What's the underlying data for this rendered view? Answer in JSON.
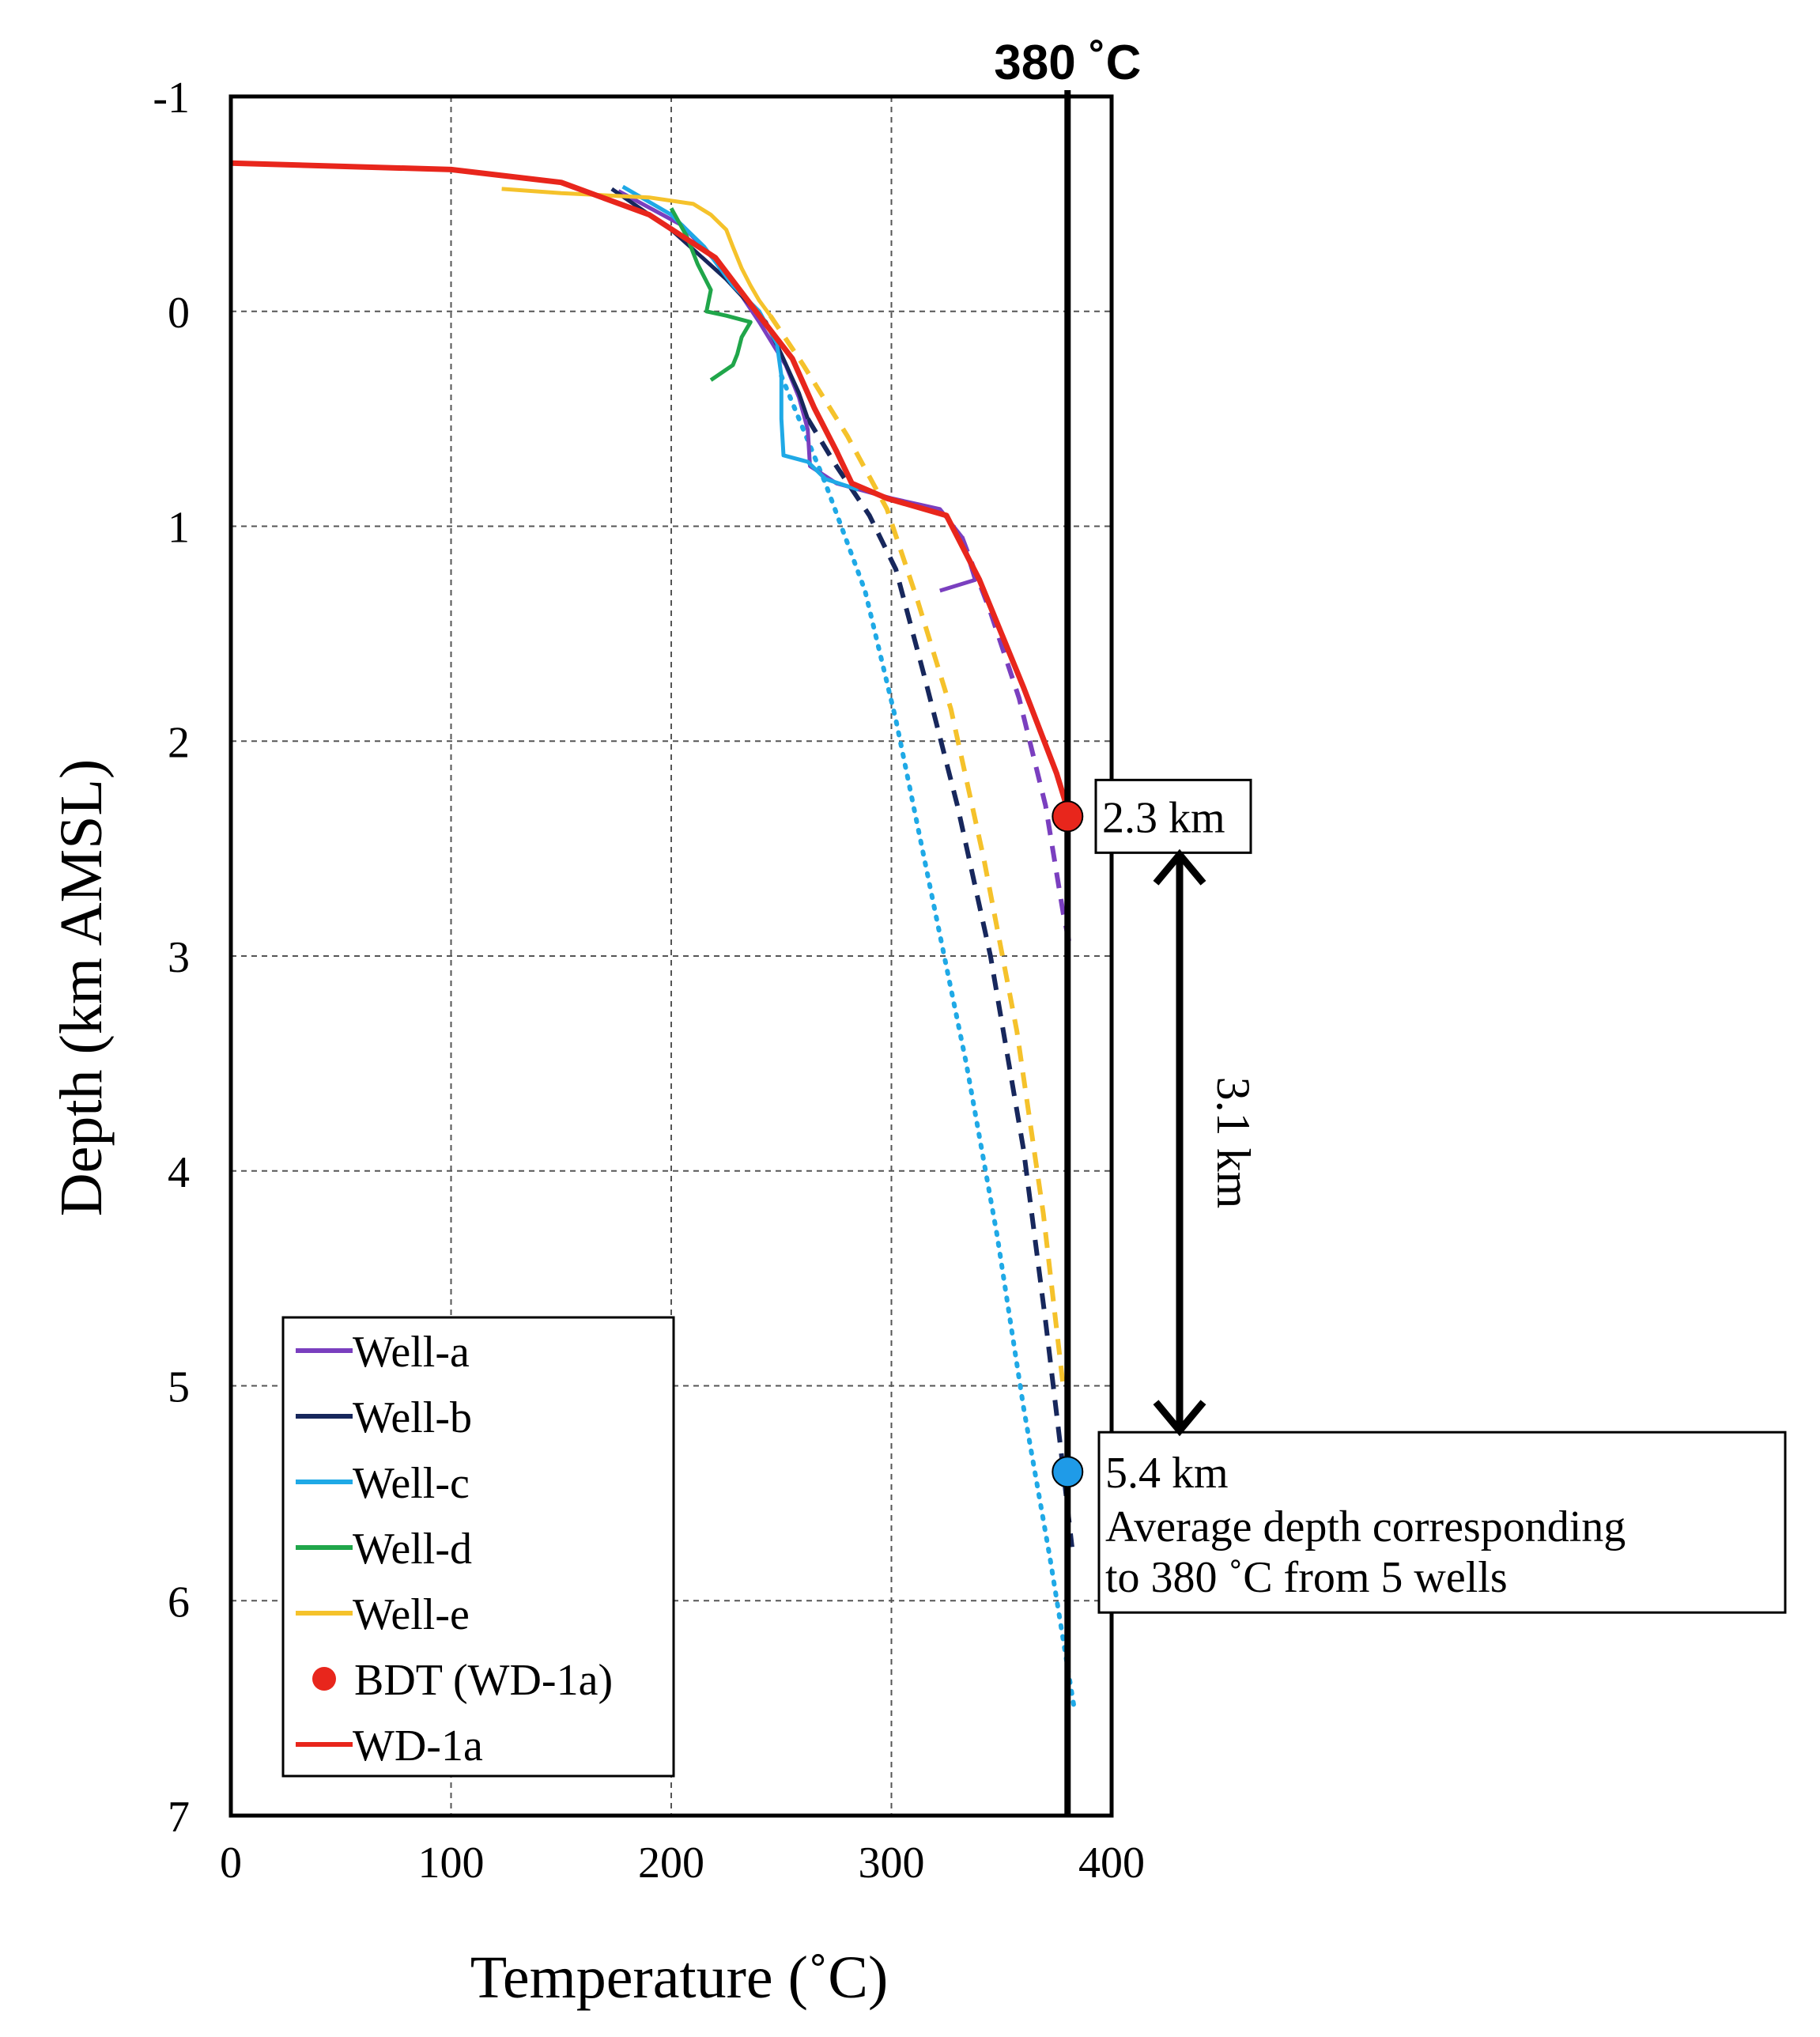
{
  "chart_data": {
    "type": "line",
    "orientation": "depth-temperature profile (y axis inverted)",
    "xlabel": "Temperature (˚C)",
    "ylabel": "Depth (km AMSL)",
    "xlim": [
      0,
      400
    ],
    "ylim": [
      -1,
      7
    ],
    "x_ticks": [
      0,
      100,
      200,
      300,
      400
    ],
    "y_ticks": [
      -1,
      0,
      1,
      2,
      3,
      4,
      5,
      6,
      7
    ],
    "grid": true,
    "legend_position": "bottom-left",
    "colors": {
      "well_a": "#7a3fbf",
      "well_b": "#17275c",
      "well_c": "#1fa9e6",
      "well_d": "#20a64a",
      "well_e": "#f5c22b",
      "bdt": "#e8261c",
      "wd1a": "#e8261c",
      "avg": "#1f9be8",
      "reference": "#000000"
    },
    "reference_line": {
      "temperature": 380,
      "label": "380 ˚C"
    },
    "series": [
      {
        "name": "Well-a",
        "measured": [
          [
            176,
            -0.56
          ],
          [
            205,
            -0.4
          ],
          [
            225,
            -0.18
          ],
          [
            240,
            0.05
          ],
          [
            252,
            0.25
          ],
          [
            258,
            0.4
          ],
          [
            262,
            0.55
          ],
          [
            263,
            0.72
          ],
          [
            275,
            0.8
          ],
          [
            300,
            0.87
          ],
          [
            322,
            0.92
          ],
          [
            332,
            1.05
          ],
          [
            338,
            1.25
          ],
          [
            322,
            1.3
          ]
        ],
        "extrapolated": [
          [
            332,
            1.05
          ],
          [
            345,
            1.4
          ],
          [
            358,
            1.8
          ],
          [
            370,
            2.3
          ],
          [
            378,
            2.8
          ],
          [
            381,
            2.95
          ]
        ],
        "extrapolated_style": "dashed"
      },
      {
        "name": "Well-b",
        "measured": [
          [
            173,
            -0.57
          ],
          [
            200,
            -0.38
          ],
          [
            225,
            -0.15
          ],
          [
            243,
            0.05
          ],
          [
            250,
            0.2
          ],
          [
            258,
            0.38
          ],
          [
            262,
            0.5
          ]
        ],
        "extrapolated": [
          [
            262,
            0.5
          ],
          [
            275,
            0.72
          ],
          [
            290,
            0.95
          ],
          [
            302,
            1.2
          ],
          [
            315,
            1.7
          ],
          [
            330,
            2.3
          ],
          [
            345,
            3.0
          ],
          [
            360,
            3.9
          ],
          [
            370,
            4.7
          ],
          [
            377,
            5.3
          ],
          [
            382,
            5.75
          ]
        ],
        "extrapolated_style": "dashed"
      },
      {
        "name": "Well-c",
        "measured": [
          [
            178,
            -0.58
          ],
          [
            200,
            -0.45
          ],
          [
            215,
            -0.3
          ],
          [
            228,
            -0.12
          ],
          [
            240,
            0.0
          ],
          [
            248,
            0.15
          ],
          [
            250,
            0.3
          ],
          [
            250,
            0.5
          ],
          [
            251,
            0.67
          ],
          [
            262,
            0.7
          ],
          [
            270,
            0.78
          ],
          [
            285,
            0.83
          ]
        ],
        "extrapolated": [
          [
            250,
            0.3
          ],
          [
            270,
            0.8
          ],
          [
            288,
            1.3
          ],
          [
            302,
            1.9
          ],
          [
            318,
            2.7
          ],
          [
            334,
            3.5
          ],
          [
            348,
            4.3
          ],
          [
            360,
            5.1
          ],
          [
            372,
            5.8
          ],
          [
            383,
            6.5
          ]
        ],
        "extrapolated_style": "dotted"
      },
      {
        "name": "Well-d",
        "measured": [
          [
            200,
            -0.48
          ],
          [
            207,
            -0.35
          ],
          [
            212,
            -0.22
          ],
          [
            218,
            -0.1
          ],
          [
            216,
            0.0
          ],
          [
            225,
            0.02
          ],
          [
            236,
            0.05
          ],
          [
            232,
            0.12
          ],
          [
            230,
            0.2
          ],
          [
            228,
            0.25
          ],
          [
            218,
            0.32
          ]
        ],
        "extrapolated": [],
        "extrapolated_style": "none"
      },
      {
        "name": "Well-e",
        "measured": [
          [
            123,
            -0.57
          ],
          [
            150,
            -0.55
          ],
          [
            190,
            -0.53
          ],
          [
            210,
            -0.5
          ],
          [
            218,
            -0.45
          ],
          [
            225,
            -0.38
          ],
          [
            228,
            -0.3
          ],
          [
            232,
            -0.2
          ],
          [
            236,
            -0.12
          ],
          [
            240,
            -0.05
          ],
          [
            245,
            0.02
          ]
        ],
        "extrapolated": [
          [
            245,
            0.02
          ],
          [
            260,
            0.25
          ],
          [
            280,
            0.58
          ],
          [
            298,
            0.92
          ],
          [
            312,
            1.35
          ],
          [
            327,
            1.85
          ],
          [
            342,
            2.55
          ],
          [
            357,
            3.35
          ],
          [
            369,
            4.2
          ],
          [
            378,
            5.0
          ]
        ],
        "extrapolated_style": "dashed"
      },
      {
        "name": "WD-1a",
        "measured": [
          [
            0,
            -0.69
          ],
          [
            100,
            -0.66
          ],
          [
            150,
            -0.6
          ],
          [
            190,
            -0.45
          ],
          [
            220,
            -0.25
          ],
          [
            240,
            0.02
          ],
          [
            255,
            0.22
          ],
          [
            265,
            0.45
          ],
          [
            275,
            0.65
          ],
          [
            282,
            0.8
          ],
          [
            298,
            0.87
          ],
          [
            325,
            0.95
          ],
          [
            340,
            1.25
          ],
          [
            360,
            1.75
          ],
          [
            375,
            2.15
          ],
          [
            381,
            2.35
          ]
        ],
        "extrapolated": [],
        "extrapolated_style": "none"
      }
    ],
    "points": [
      {
        "name": "BDT (WD-1a)",
        "temperature": 380,
        "depth": 2.35,
        "label": "2.3 km"
      },
      {
        "name": "Average",
        "temperature": 380,
        "depth": 5.4,
        "label": "5.4 km",
        "description_lines": [
          "Average depth corresponding",
          "to 380 ˚C from 5 wells"
        ]
      }
    ],
    "annotations": {
      "span_label": "3.1 km",
      "span_from_km": 2.3,
      "span_to_km": 5.4
    },
    "legend": [
      "Well-a",
      "Well-b",
      "Well-c",
      "Well-d",
      "Well-e",
      "BDT (WD-1a)",
      "WD-1a"
    ]
  }
}
